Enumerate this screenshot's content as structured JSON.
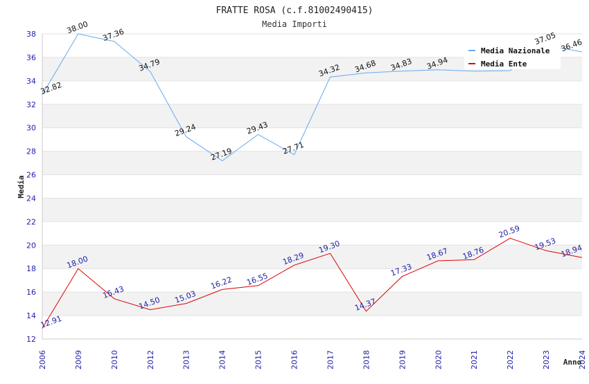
{
  "chart_data": {
    "type": "line",
    "title": "FRATTE ROSA (c.f.81002490415)",
    "subtitle": "Media Importi",
    "xlabel": "Anno",
    "ylabel": "Media",
    "categories": [
      "2006",
      "2009",
      "2010",
      "2012",
      "2013",
      "2014",
      "2015",
      "2016",
      "2017",
      "2018",
      "2019",
      "2020",
      "2021",
      "2022",
      "2023",
      "2024"
    ],
    "ylim": [
      12,
      38
    ],
    "yticks": [
      12,
      14,
      16,
      18,
      20,
      22,
      24,
      26,
      28,
      30,
      32,
      34,
      36,
      38
    ],
    "grid": true,
    "legend_position": "top-right",
    "series": [
      {
        "name": "Media Nazionale",
        "color": "#66aaee",
        "values": [
          32.82,
          38.0,
          37.36,
          34.79,
          29.24,
          27.19,
          29.43,
          27.71,
          34.32,
          34.68,
          34.83,
          34.94,
          34.82,
          34.87,
          37.05,
          36.46
        ],
        "labels": [
          "32.82",
          "38.00",
          "37.36",
          "34.79",
          "29.24",
          "27.19",
          "29.43",
          "27.71",
          "34.32",
          "34.68",
          "34.83",
          "34.94",
          "",
          "",
          "37.05",
          "36.46"
        ]
      },
      {
        "name": "Media Ente",
        "color": "#dd0000",
        "values": [
          12.91,
          18.0,
          15.43,
          14.5,
          15.03,
          16.22,
          16.55,
          18.29,
          19.3,
          14.37,
          17.33,
          18.67,
          18.76,
          20.59,
          19.53,
          18.94
        ],
        "labels": [
          "12.91",
          "18.00",
          "15.43",
          "14.50",
          "15.03",
          "16.22",
          "16.55",
          "18.29",
          "19.30",
          "14.37",
          "17.33",
          "18.67",
          "18.76",
          "20.59",
          "19.53",
          "18.94"
        ]
      }
    ]
  }
}
